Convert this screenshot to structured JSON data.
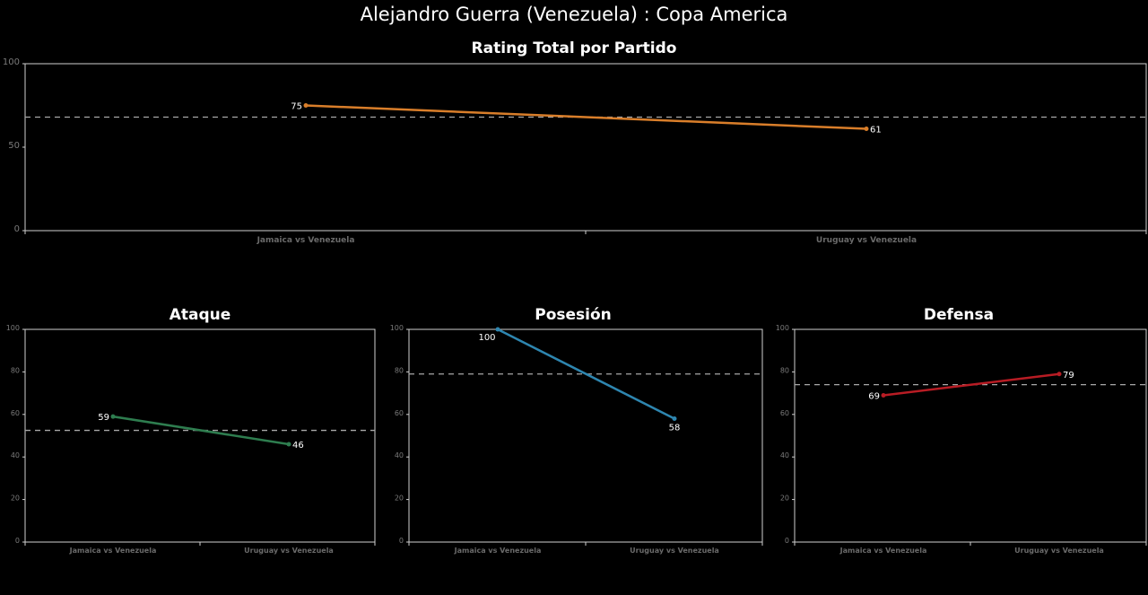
{
  "title": "Alejandro Guerra (Venezuela) :  Copa  America",
  "chart_data": [
    {
      "type": "line",
      "title": "Rating Total por Partido",
      "categories": [
        "Jamaica vs Venezuela",
        "Uruguay vs Venezuela"
      ],
      "values": [
        75,
        61
      ],
      "data_labels": [
        "75",
        "61"
      ],
      "mean_line": 68,
      "ylim": [
        0,
        100
      ],
      "yticks": [
        0,
        50,
        100
      ],
      "color": "#d97e2a"
    },
    {
      "type": "line",
      "title": "Ataque",
      "categories": [
        "Jamaica vs Venezuela",
        "Uruguay vs Venezuela"
      ],
      "values": [
        59,
        46
      ],
      "data_labels": [
        "59",
        "46"
      ],
      "mean_line": 52.5,
      "ylim": [
        0,
        100
      ],
      "yticks": [
        0,
        20,
        40,
        60,
        80,
        100
      ],
      "color": "#2e7d4f"
    },
    {
      "type": "line",
      "title": "Posesión",
      "categories": [
        "Jamaica vs Venezuela",
        "Uruguay vs Venezuela"
      ],
      "values": [
        100,
        58
      ],
      "data_labels": [
        "100",
        "58"
      ],
      "mean_line": 79,
      "ylim": [
        0,
        100
      ],
      "yticks": [
        0,
        20,
        40,
        60,
        80,
        100
      ],
      "color": "#2e86b0"
    },
    {
      "type": "line",
      "title": "Defensa",
      "categories": [
        "Jamaica vs Venezuela",
        "Uruguay vs Venezuela"
      ],
      "values": [
        69,
        79
      ],
      "data_labels": [
        "69",
        "79"
      ],
      "mean_line": 74,
      "ylim": [
        0,
        100
      ],
      "yticks": [
        0,
        20,
        40,
        60,
        80,
        100
      ],
      "color": "#b81c24"
    }
  ]
}
